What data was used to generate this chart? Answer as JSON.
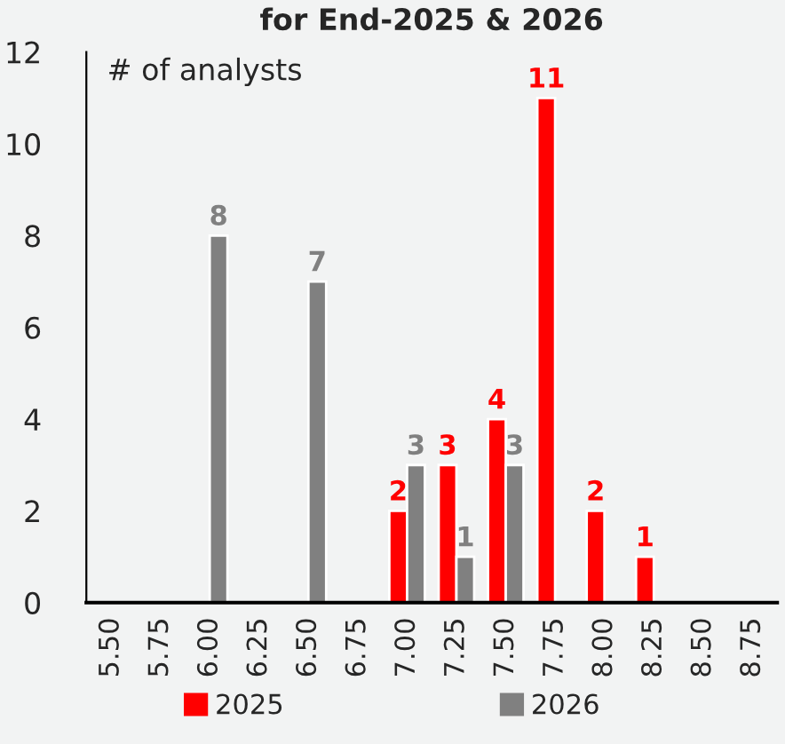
{
  "chart_data": {
    "type": "bar",
    "title": "for End-2025 & 2026",
    "ylabel": "# of analysts",
    "categories": [
      "5.50",
      "5.75",
      "6.00",
      "6.25",
      "6.50",
      "6.75",
      "7.00",
      "7.25",
      "7.50",
      "7.75",
      "8.00",
      "8.25",
      "8.50",
      "8.75"
    ],
    "series": [
      {
        "name": "2025",
        "color": "#ff0000",
        "values": [
          null,
          null,
          null,
          null,
          null,
          null,
          2,
          3,
          4,
          11,
          2,
          1,
          null,
          null
        ]
      },
      {
        "name": "2026",
        "color": "#808080",
        "values": [
          null,
          null,
          8,
          null,
          7,
          null,
          3,
          1,
          3,
          null,
          null,
          null,
          null,
          null
        ]
      }
    ],
    "ylim": [
      0,
      12
    ],
    "yticks": [
      0,
      2,
      4,
      6,
      8,
      10,
      12
    ],
    "data_labels": true,
    "legend": "bottom",
    "grid": false
  }
}
